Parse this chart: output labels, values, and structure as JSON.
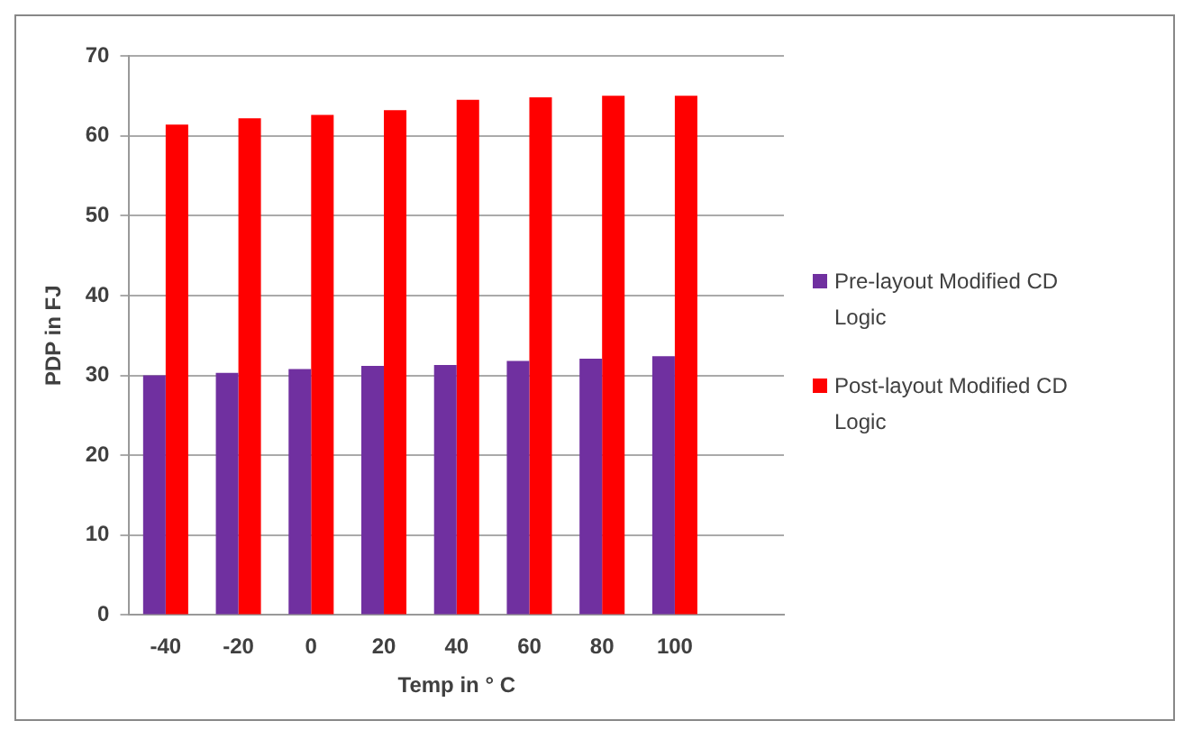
{
  "chart_data": {
    "type": "bar",
    "xlabel": "Temp in ° C",
    "ylabel": "PDP in FJ",
    "categories": [
      "-40",
      "-20",
      "0",
      "20",
      "40",
      "60",
      "80",
      "100",
      null
    ],
    "series": [
      {
        "name": "Pre-layout Modified CD Logic",
        "color": "#7030a0",
        "values": [
          30,
          30.3,
          30.8,
          31.2,
          31.3,
          31.8,
          32.1,
          32.4,
          null
        ]
      },
      {
        "name": "Post-layout Modified CD Logic",
        "color": "#ff0000",
        "values": [
          61.4,
          62.2,
          62.6,
          63.2,
          64.5,
          64.8,
          65,
          65,
          null
        ]
      }
    ],
    "ylim": [
      0,
      70
    ],
    "yticks": [
      0,
      10,
      20,
      30,
      40,
      50,
      60,
      70
    ],
    "grid": "y",
    "legend": "right"
  }
}
